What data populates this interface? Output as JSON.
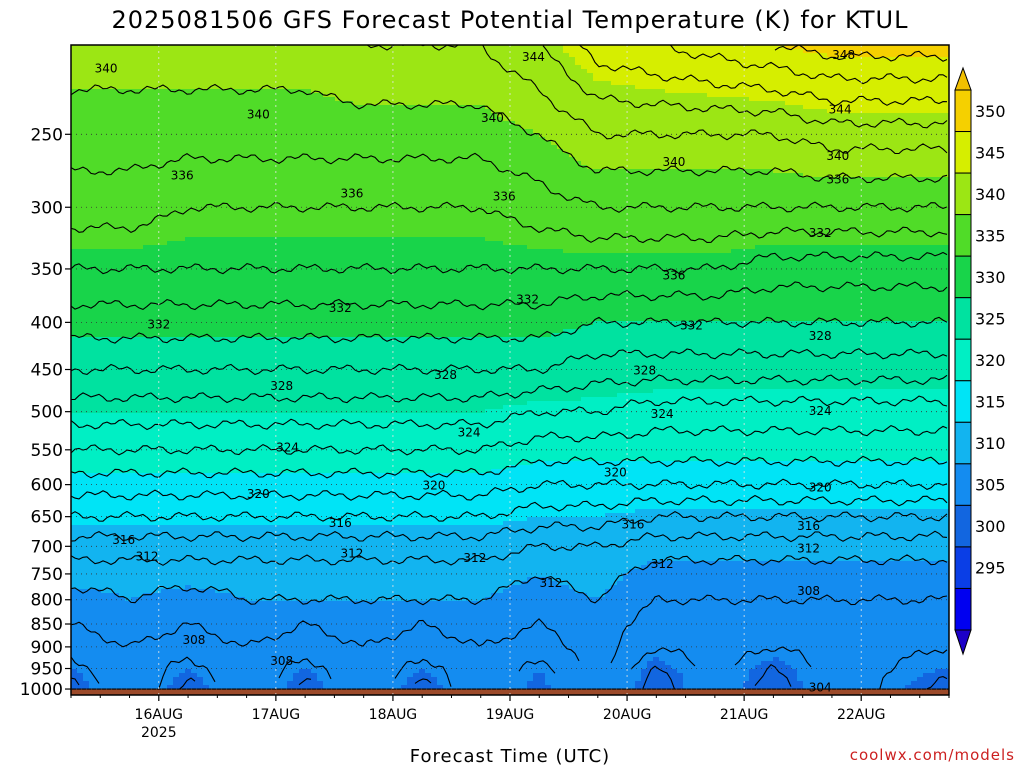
{
  "chart_data": {
    "type": "heatmap",
    "title": "2025081506 GFS Forecast Potential Temperature (K) for KTUL",
    "xlabel": "Forecast Time (UTC)",
    "ylabel": "",
    "credit": "coolwx.com/models",
    "x_ticks": [
      {
        "label": "16AUG",
        "sub": "2025",
        "day": 16
      },
      {
        "label": "17AUG",
        "sub": "",
        "day": 17
      },
      {
        "label": "18AUG",
        "sub": "",
        "day": 18
      },
      {
        "label": "19AUG",
        "sub": "",
        "day": 19
      },
      {
        "label": "20AUG",
        "sub": "",
        "day": 20
      },
      {
        "label": "21AUG",
        "sub": "",
        "day": 21
      },
      {
        "label": "22AUG",
        "sub": "",
        "day": 22
      }
    ],
    "xlim_days": [
      15.25,
      22.75
    ],
    "y_ticks": [
      250,
      300,
      350,
      400,
      450,
      500,
      550,
      600,
      650,
      700,
      750,
      800,
      850,
      900,
      950,
      1000
    ],
    "y_units": "hPa",
    "ylim": [
      200,
      1015
    ],
    "y_scale": "log",
    "surface_pressure": 1000,
    "surface_color": "#9c4a2a",
    "colorbar": {
      "levels": [
        290,
        295,
        300,
        305,
        310,
        315,
        320,
        325,
        330,
        335,
        340,
        345,
        350,
        355
      ],
      "labels": [
        295,
        300,
        305,
        310,
        315,
        320,
        325,
        330,
        335,
        340,
        345,
        350
      ],
      "colors": [
        "#1c00c8",
        "#0000f0",
        "#0a3ee6",
        "#1266e0",
        "#148cf0",
        "#12b4f0",
        "#00e4f6",
        "#00efc4",
        "#00e2a0",
        "#18d44a",
        "#50dc28",
        "#9ce614",
        "#d6ee00",
        "#f5d000",
        "#f2c000"
      ],
      "extend": "both"
    },
    "grid": true,
    "series": [
      {
        "pressure": 1000,
        "theta": [
          303,
          309,
          303,
          309,
          303,
          309,
          303,
          309,
          304,
          310,
          302,
          308,
          302,
          308,
          303
        ]
      },
      {
        "pressure": 950,
        "theta": [
          305,
          308,
          305,
          308,
          305,
          308,
          305,
          308,
          305,
          309,
          304,
          307,
          304,
          307,
          305
        ]
      },
      {
        "pressure": 900,
        "theta": [
          307,
          308,
          307,
          308,
          307,
          308,
          307,
          308,
          307,
          309,
          306,
          307,
          306,
          307,
          306
        ]
      },
      {
        "pressure": 850,
        "theta": [
          308,
          309,
          308,
          309,
          308,
          309,
          308,
          309,
          308,
          309,
          307,
          308,
          307,
          308,
          307
        ]
      },
      {
        "pressure": 800,
        "theta": [
          309,
          310,
          309,
          310,
          310,
          310,
          310,
          310,
          309,
          310,
          308,
          308,
          308,
          308,
          308
        ]
      },
      {
        "pressure": 750,
        "theta": [
          311,
          311,
          311,
          311,
          311,
          311,
          311,
          311,
          310,
          311,
          309,
          309,
          309,
          309,
          309
        ]
      },
      {
        "pressure": 700,
        "theta": [
          313,
          313,
          313,
          313,
          313,
          313,
          313,
          313,
          312,
          312,
          311,
          311,
          311,
          311,
          311
        ]
      },
      {
        "pressure": 650,
        "theta": [
          316,
          316,
          316,
          316,
          316,
          316,
          316,
          316,
          315,
          315,
          314,
          314,
          314,
          314,
          314
        ]
      },
      {
        "pressure": 600,
        "theta": [
          319,
          319,
          319,
          319,
          319,
          319,
          319,
          319,
          318,
          318,
          318,
          318,
          318,
          318,
          318
        ]
      },
      {
        "pressure": 550,
        "theta": [
          322,
          322,
          322,
          322,
          322,
          322,
          322,
          322,
          321,
          321,
          321,
          321,
          321,
          321,
          321
        ]
      },
      {
        "pressure": 500,
        "theta": [
          325,
          325,
          325,
          325,
          325,
          325,
          325,
          325,
          324,
          324,
          323,
          323,
          323,
          323,
          323
        ]
      },
      {
        "pressure": 450,
        "theta": [
          328,
          328,
          328,
          328,
          328,
          328,
          328,
          328,
          328,
          327,
          327,
          327,
          327,
          327,
          327
        ]
      },
      {
        "pressure": 400,
        "theta": [
          331,
          331,
          331,
          331,
          331,
          331,
          331,
          331,
          331,
          330,
          330,
          330,
          330,
          330,
          330
        ]
      },
      {
        "pressure": 350,
        "theta": [
          334,
          334,
          334,
          334,
          334,
          334,
          334,
          334,
          334,
          334,
          334,
          334,
          333,
          333,
          333
        ]
      },
      {
        "pressure": 300,
        "theta": [
          337,
          337,
          336,
          336,
          336,
          336,
          336,
          336,
          337,
          338,
          338,
          338,
          338,
          338,
          338
        ]
      },
      {
        "pressure": 250,
        "theta": [
          339,
          339,
          339,
          339,
          339,
          339,
          339,
          339,
          340,
          342,
          342,
          342,
          342,
          343,
          343
        ]
      },
      {
        "pressure": 200,
        "theta": [
          341,
          341,
          341,
          341,
          341,
          342,
          342,
          342,
          344,
          347,
          348,
          349,
          350,
          351,
          351
        ]
      }
    ],
    "series_days": [
      15.25,
      15.75,
      16.25,
      16.75,
      17.25,
      17.75,
      18.25,
      18.75,
      19.25,
      19.75,
      20.25,
      20.75,
      21.25,
      21.75,
      22.75
    ],
    "contour_interval": 2,
    "contour_labels": [
      {
        "value": 340,
        "day": 15.55,
        "p": 212
      },
      {
        "value": 344,
        "day": 19.2,
        "p": 206
      },
      {
        "value": 348,
        "day": 21.85,
        "p": 205
      },
      {
        "value": 340,
        "day": 16.85,
        "p": 238
      },
      {
        "value": 340,
        "day": 18.85,
        "p": 240
      },
      {
        "value": 344,
        "day": 21.82,
        "p": 235
      },
      {
        "value": 340,
        "day": 20.4,
        "p": 268
      },
      {
        "value": 340,
        "day": 21.8,
        "p": 264
      },
      {
        "value": 336,
        "day": 16.2,
        "p": 277
      },
      {
        "value": 336,
        "day": 17.65,
        "p": 290
      },
      {
        "value": 336,
        "day": 18.95,
        "p": 292
      },
      {
        "value": 336,
        "day": 21.8,
        "p": 280
      },
      {
        "value": 332,
        "day": 21.65,
        "p": 320
      },
      {
        "value": 336,
        "day": 20.4,
        "p": 356
      },
      {
        "value": 332,
        "day": 17.55,
        "p": 386
      },
      {
        "value": 332,
        "day": 16.0,
        "p": 402
      },
      {
        "value": 332,
        "day": 19.15,
        "p": 378
      },
      {
        "value": 332,
        "day": 20.55,
        "p": 403
      },
      {
        "value": 328,
        "day": 21.65,
        "p": 414
      },
      {
        "value": 328,
        "day": 18.45,
        "p": 456
      },
      {
        "value": 328,
        "day": 20.15,
        "p": 451
      },
      {
        "value": 328,
        "day": 17.05,
        "p": 469
      },
      {
        "value": 324,
        "day": 21.65,
        "p": 499
      },
      {
        "value": 324,
        "day": 18.65,
        "p": 527
      },
      {
        "value": 324,
        "day": 20.3,
        "p": 503
      },
      {
        "value": 324,
        "day": 17.1,
        "p": 547
      },
      {
        "value": 320,
        "day": 19.9,
        "p": 582
      },
      {
        "value": 320,
        "day": 18.35,
        "p": 601
      },
      {
        "value": 320,
        "day": 16.85,
        "p": 614
      },
      {
        "value": 320,
        "day": 21.65,
        "p": 604
      },
      {
        "value": 316,
        "day": 17.55,
        "p": 660
      },
      {
        "value": 316,
        "day": 15.7,
        "p": 689
      },
      {
        "value": 316,
        "day": 20.05,
        "p": 663
      },
      {
        "value": 316,
        "day": 21.55,
        "p": 665
      },
      {
        "value": 312,
        "day": 15.9,
        "p": 718
      },
      {
        "value": 312,
        "day": 17.65,
        "p": 713
      },
      {
        "value": 312,
        "day": 18.7,
        "p": 721
      },
      {
        "value": 312,
        "day": 19.35,
        "p": 767
      },
      {
        "value": 312,
        "day": 20.3,
        "p": 732
      },
      {
        "value": 312,
        "day": 21.55,
        "p": 704
      },
      {
        "value": 308,
        "day": 16.3,
        "p": 885
      },
      {
        "value": 308,
        "day": 17.05,
        "p": 932
      },
      {
        "value": 308,
        "day": 21.55,
        "p": 783
      },
      {
        "value": 304,
        "day": 21.65,
        "p": 996
      }
    ]
  }
}
